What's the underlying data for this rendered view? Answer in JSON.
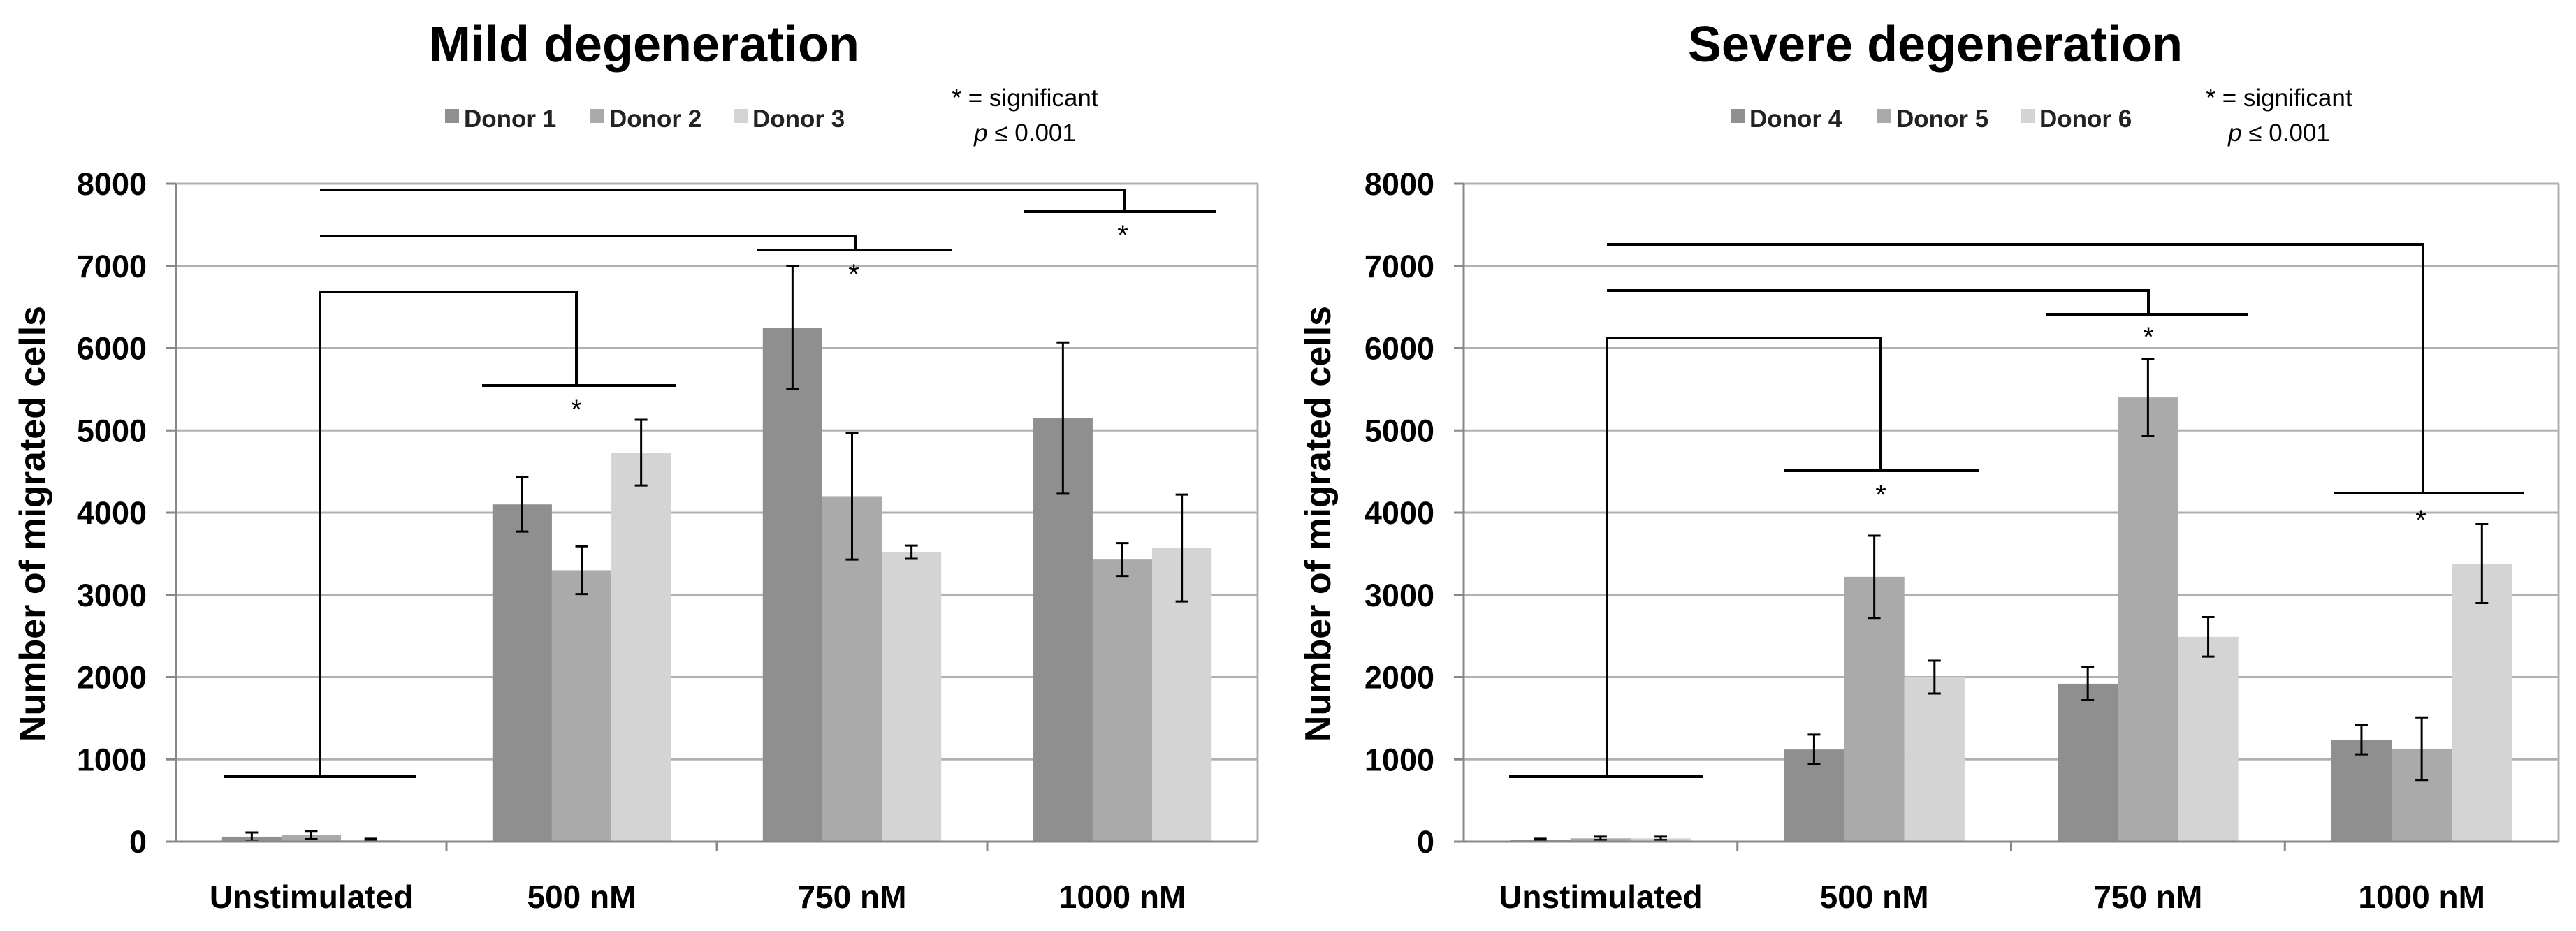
{
  "chart_data": [
    {
      "type": "bar",
      "title": "Mild degeneration",
      "ylabel": "Number of migrated cells",
      "xlabel": "",
      "ylim": [
        0,
        8000
      ],
      "yticks": [
        "0",
        "1000",
        "2000",
        "3000",
        "4000",
        "5000",
        "6000",
        "7000",
        "8000"
      ],
      "grid": true,
      "categories": [
        "Unstimulated",
        "500 nM",
        "750 nM",
        "1000 nM"
      ],
      "series": [
        {
          "name": "Donor 1",
          "color": "#8f8f8f",
          "values": [
            60,
            4100,
            6250,
            5150
          ],
          "errors": [
            50,
            330,
            750,
            920
          ]
        },
        {
          "name": "Donor 2",
          "color": "#aaaaaa",
          "values": [
            80,
            3300,
            4200,
            3430
          ],
          "errors": [
            50,
            290,
            770,
            200
          ]
        },
        {
          "name": "Donor 3",
          "color": "#d4d4d4",
          "values": [
            20,
            4730,
            3520,
            3570
          ],
          "errors": [
            15,
            400,
            80,
            650
          ]
        }
      ],
      "legend_position": "top",
      "significance_note": {
        "line1": "* = significant",
        "line2_symbol": "p",
        "line2_rest": " ≤ 0.001"
      },
      "star": "*"
    },
    {
      "type": "bar",
      "title": "Severe degeneration",
      "ylabel": "Number of migrated cells",
      "xlabel": "",
      "ylim": [
        0,
        8000
      ],
      "yticks": [
        "0",
        "1000",
        "2000",
        "3000",
        "4000",
        "5000",
        "6000",
        "7000",
        "8000"
      ],
      "grid": true,
      "categories": [
        "Unstimulated",
        "500 nM",
        "750 nM",
        "1000 nM"
      ],
      "series": [
        {
          "name": "Donor 4",
          "color": "#8f8f8f",
          "values": [
            20,
            1120,
            1920,
            1240
          ],
          "errors": [
            15,
            180,
            200,
            180
          ]
        },
        {
          "name": "Donor 5",
          "color": "#aaaaaa",
          "values": [
            40,
            3220,
            5400,
            1130
          ],
          "errors": [
            20,
            500,
            470,
            380
          ]
        },
        {
          "name": "Donor 6",
          "color": "#d4d4d4",
          "values": [
            40,
            2000,
            2490,
            3380
          ],
          "errors": [
            20,
            200,
            240,
            480
          ]
        }
      ],
      "legend_position": "top",
      "significance_note": {
        "line1": "* = significant",
        "line2_symbol": "p",
        "line2_rest": " ≤ 0.001"
      },
      "star": "*"
    }
  ]
}
